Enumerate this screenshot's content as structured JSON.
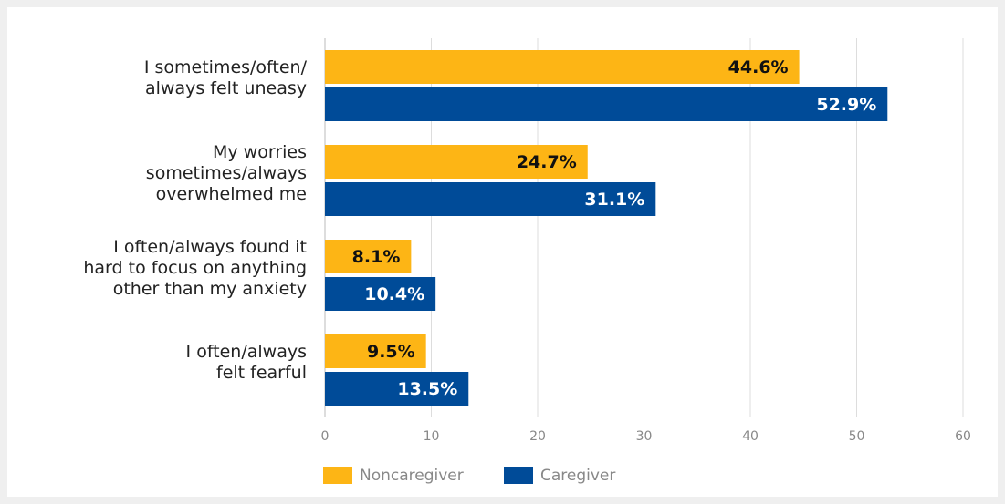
{
  "chart_data": {
    "type": "hbar",
    "categories": [
      "I sometimes/often/\nalways felt uneasy",
      "My worries\nsometimes/always\noverwhelmed me",
      "I often/always found it\nhard to focus on anything\nother than my anxiety",
      "I often/always\nfelt fearful"
    ],
    "series": [
      {
        "name": "Noncaregiver",
        "color": "#fdb515",
        "values": [
          44.6,
          24.7,
          8.1,
          9.5
        ],
        "value_labels": [
          "44.6%",
          "24.7%",
          "8.1%",
          "9.5%"
        ]
      },
      {
        "name": "Caregiver",
        "color": "#004b98",
        "values": [
          52.9,
          31.1,
          10.4,
          13.5
        ],
        "value_labels": [
          "52.9%",
          "31.1%",
          "10.4%",
          "13.5%"
        ]
      }
    ],
    "xlim": [
      0,
      60
    ],
    "xticks": [
      0,
      10,
      20,
      30,
      40,
      50,
      60
    ],
    "grid": true,
    "legend": "bottom"
  }
}
